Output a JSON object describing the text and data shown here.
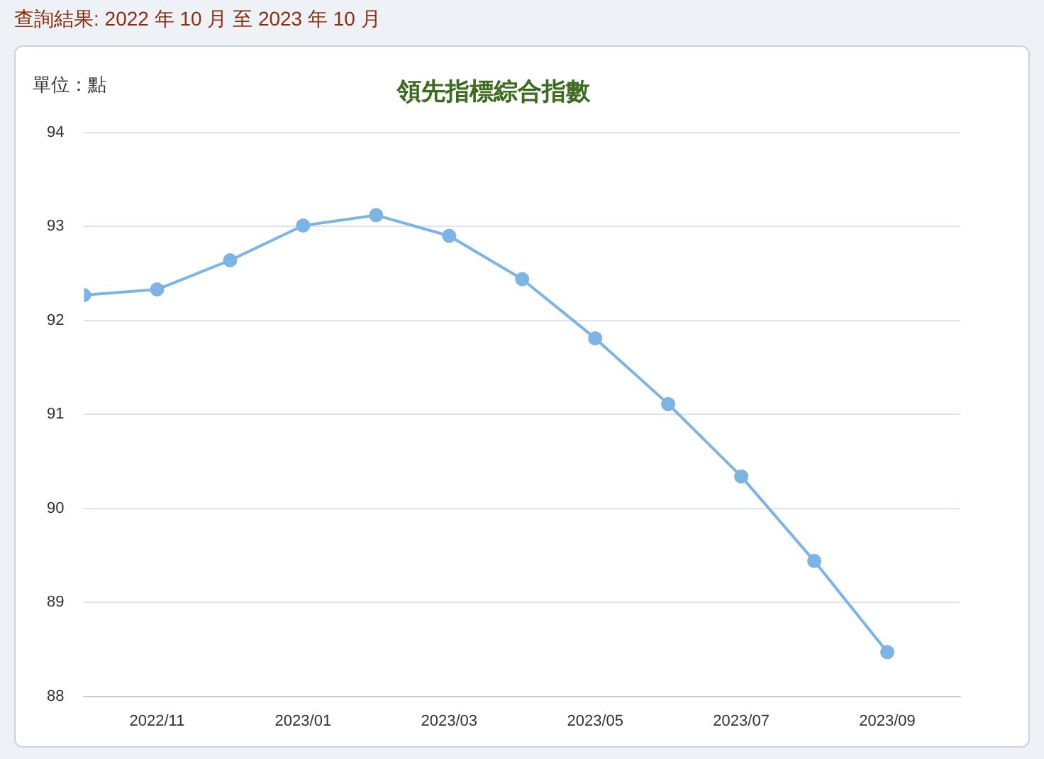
{
  "chart_data": {
    "type": "line",
    "title": "領先指標綜合指數",
    "ylabel": "單位：點",
    "annotations": [
      "查詢結果: 2022 年 10 月 至 2023 年 10 月"
    ],
    "categories": [
      null,
      "2022/11",
      null,
      "2023/01",
      null,
      "2023/03",
      null,
      "2023/05",
      null,
      "2023/07",
      null,
      "2023/09"
    ],
    "series": [
      {
        "color": "#7db4e6",
        "values": [
          92.27,
          92.33,
          92.64,
          93.01,
          93.12,
          92.9,
          92.44,
          91.81,
          91.11,
          90.34,
          89.44,
          88.47
        ]
      }
    ],
    "ylim": [
      88,
      94
    ],
    "yticks": [
      88,
      89,
      90,
      91,
      92,
      93,
      94
    ],
    "grid": "y",
    "legend": false,
    "marker": "circle",
    "line_style": "solid"
  }
}
